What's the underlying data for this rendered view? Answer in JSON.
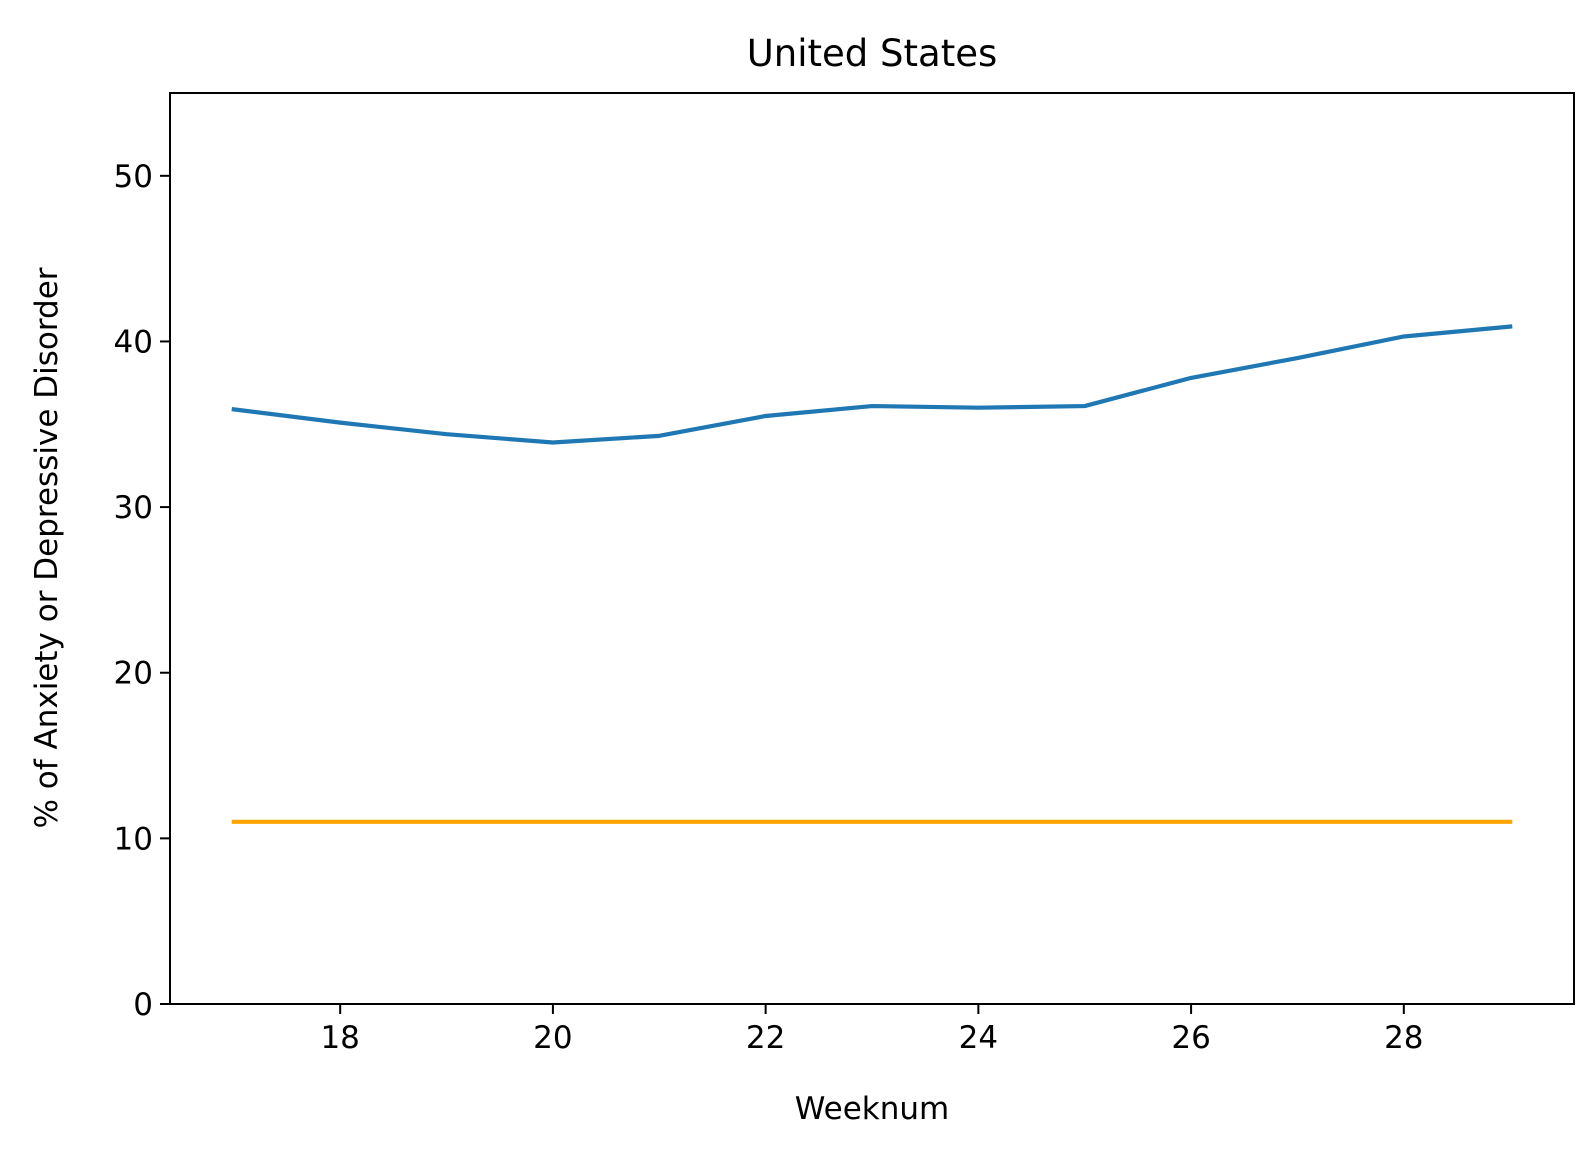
{
  "chart_data": {
    "type": "line",
    "title": "United States",
    "xlabel": "Weeknum",
    "ylabel": "% of Anxiety or Depressive Disorder",
    "x": [
      17,
      18,
      19,
      20,
      21,
      22,
      23,
      24,
      25,
      26,
      27,
      28,
      29
    ],
    "xlim": [
      16.4,
      29.6
    ],
    "ylim": [
      0,
      55
    ],
    "xticks": [
      18,
      20,
      22,
      24,
      26,
      28
    ],
    "yticks": [
      0,
      10,
      20,
      30,
      40,
      50
    ],
    "xtick_labels": [
      "18",
      "20",
      "22",
      "24",
      "26",
      "28"
    ],
    "ytick_labels": [
      "0",
      "10",
      "20",
      "30",
      "40",
      "50"
    ],
    "grid": false,
    "series": [
      {
        "color": "#1f77b4",
        "values": [
          35.9,
          35.1,
          34.4,
          33.9,
          34.3,
          35.5,
          36.1,
          36.0,
          36.1,
          37.8,
          39.0,
          40.3,
          40.9
        ]
      },
      {
        "color": "#ffa500",
        "values": [
          11,
          11,
          11,
          11,
          11,
          11,
          11,
          11,
          11,
          11,
          11,
          11,
          11
        ]
      }
    ]
  }
}
